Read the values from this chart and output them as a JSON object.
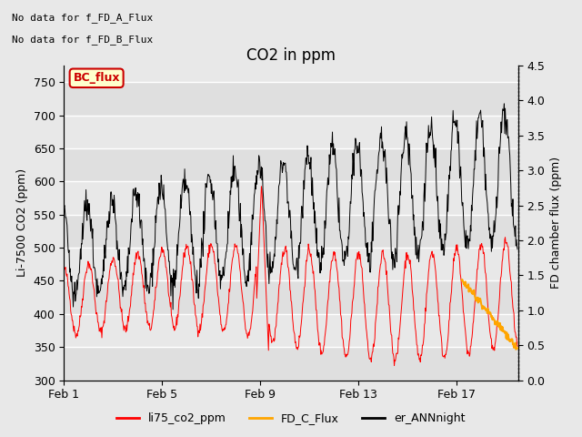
{
  "title": "CO2 in ppm",
  "ylabel_left": "Li-7500 CO2 (ppm)",
  "ylabel_right": "FD chamber flux (ppm)",
  "ylim_left": [
    300,
    775
  ],
  "ylim_right": [
    0.0,
    4.5
  ],
  "yticks_left": [
    300,
    350,
    400,
    450,
    500,
    550,
    600,
    650,
    700,
    750
  ],
  "yticks_right": [
    0.0,
    0.5,
    1.0,
    1.5,
    2.0,
    2.5,
    3.0,
    3.5,
    4.0,
    4.5
  ],
  "xtick_labels": [
    "Feb 1",
    "Feb 5",
    "Feb 9",
    "Feb 13",
    "Feb 17"
  ],
  "xtick_positions": [
    0,
    4,
    8,
    12,
    16
  ],
  "xlim": [
    0,
    18.5
  ],
  "annotation_text1": "No data for f_FD_A_Flux",
  "annotation_text2": "No data for f_FD_B_Flux",
  "bc_flux_label": "BC_flux",
  "legend_items": [
    "li75_co2_ppm",
    "FD_C_Flux",
    "er_ANNnight"
  ],
  "legend_colors": [
    "#ff0000",
    "#ffa500",
    "#000000"
  ],
  "line_red_color": "#ff0000",
  "line_orange_color": "#ffa500",
  "line_black_color": "#000000",
  "bg_color": "#e8e8e8",
  "grid_color": "#ffffff",
  "title_fontsize": 12,
  "axis_label_fontsize": 9,
  "tick_fontsize": 9,
  "annot_fontsize": 8
}
